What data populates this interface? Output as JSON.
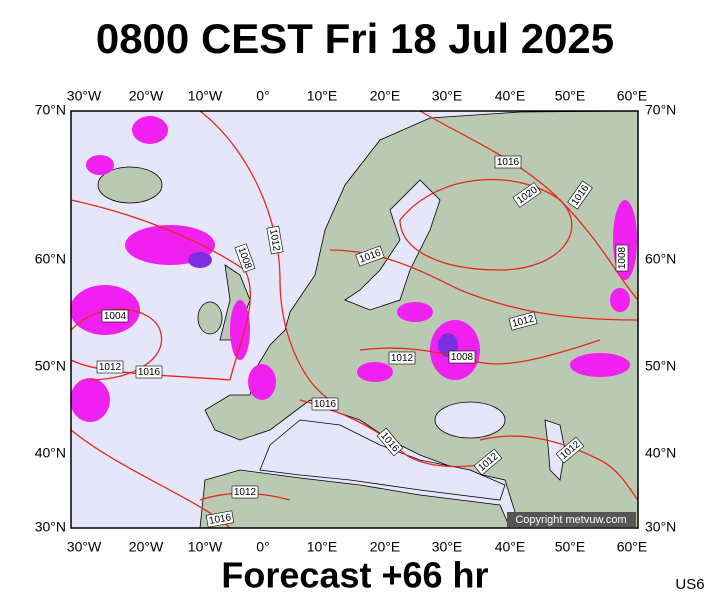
{
  "title": "0800 CEST Fri 18 Jul 2025",
  "longitude_labels": [
    "30°W",
    "20°W",
    "10°W",
    "0°",
    "10°E",
    "20°E",
    "30°E",
    "40°E",
    "50°E",
    "60°E"
  ],
  "latitude_labels": [
    "70°N",
    "60°N",
    "50°N",
    "40°N",
    "30°N"
  ],
  "isobar_labels": [
    "1016",
    "1020",
    "1016",
    "1012",
    "1008",
    "1016",
    "1008",
    "1004",
    "1012",
    "1012",
    "1008",
    "1012",
    "1016",
    "1016",
    "1016",
    "1012",
    "1012",
    "1012",
    "1016"
  ],
  "copyright": "Copyright metvuw.com",
  "footer": "Forecast +66 hr",
  "model": "US6"
}
